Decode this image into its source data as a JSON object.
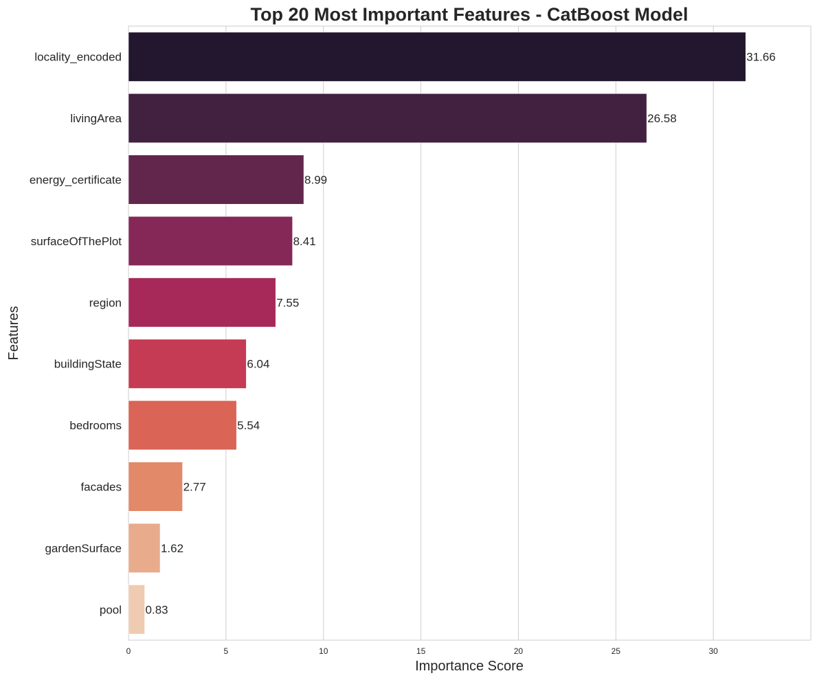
{
  "chart_data": {
    "type": "bar",
    "orientation": "horizontal",
    "title": "Top 20 Most Important Features - CatBoost Model",
    "xlabel": "Importance Score",
    "ylabel": "Features",
    "xlim": [
      0,
      35
    ],
    "xticks": [
      0,
      5,
      10,
      15,
      20,
      25,
      30
    ],
    "grid": "vertical",
    "categories": [
      "locality_encoded",
      "livingArea",
      "energy_certificate",
      "surfaceOfThePlot",
      "region",
      "buildingState",
      "bedrooms",
      "facades",
      "gardenSurface",
      "pool"
    ],
    "values": [
      31.66,
      26.58,
      8.99,
      8.41,
      7.55,
      6.04,
      5.54,
      2.77,
      1.62,
      0.83
    ],
    "data_labels": [
      "31.66",
      "26.58",
      "8.99",
      "8.41",
      "7.55",
      "6.04",
      "5.54",
      "2.77",
      "1.62",
      "0.83"
    ],
    "colors": [
      "#23172f",
      "#41213f",
      "#62264c",
      "#852857",
      "#a6295a",
      "#c53b53",
      "#da6455",
      "#e2896a",
      "#e8ab8b",
      "#efcbb1"
    ]
  }
}
